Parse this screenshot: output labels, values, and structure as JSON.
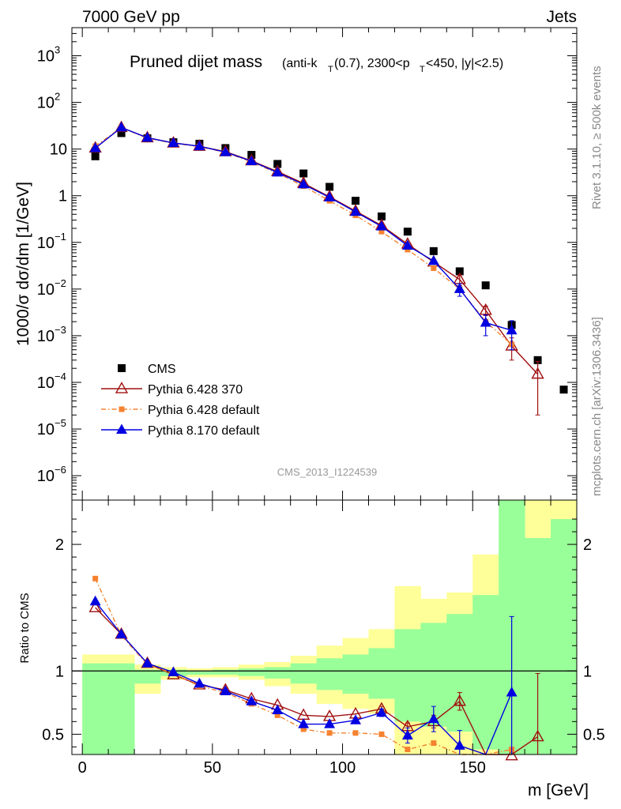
{
  "header": {
    "left": "7000 GeV pp",
    "right": "Jets"
  },
  "side": {
    "rivet": "Rivet 3.1.10, ≥ 500k events",
    "arxiv": "mcplots.cern.ch [arXiv:1306.3436]"
  },
  "chart_data": [
    {
      "type": "scatter",
      "panel": "main",
      "title": "Pruned dijet mass",
      "subtitle": "(anti-k_T(0.7), 2300<p_T<450, |y|<2.5)",
      "ylabel": "1000/σ dσ/dm [1/GeV]",
      "yscale": "log",
      "ylim": [
        3e-07,
        4000
      ],
      "xlim": [
        -4,
        190
      ],
      "watermark": "CMS_2013_I1224539",
      "legend_position": "bottom-left",
      "series": [
        {
          "name": "CMS",
          "color": "#000000",
          "marker": "square",
          "line": "none",
          "x": [
            5,
            15,
            25,
            35,
            45,
            55,
            65,
            75,
            85,
            95,
            105,
            115,
            125,
            135,
            145,
            155,
            165,
            175,
            185
          ],
          "y": [
            7,
            22,
            17,
            14,
            13,
            10.5,
            7.5,
            4.8,
            3.0,
            1.55,
            0.78,
            0.36,
            0.17,
            0.065,
            0.024,
            0.012,
            0.0017,
            0.0003,
            7e-05
          ]
        },
        {
          "name": "Pythia 6.428 370",
          "color": "#a01010",
          "marker": "open-triangle",
          "line": "solid",
          "x": [
            5,
            15,
            25,
            35,
            45,
            55,
            65,
            75,
            85,
            95,
            105,
            115,
            125,
            135,
            145,
            155,
            165,
            175
          ],
          "y": [
            10.5,
            29,
            17.5,
            13.5,
            11.5,
            8.8,
            5.6,
            3.3,
            1.85,
            0.95,
            0.47,
            0.23,
            0.092,
            0.038,
            0.016,
            0.0035,
            0.0006,
            0.00015
          ],
          "yerr": [
            0,
            0,
            0,
            0,
            0,
            0,
            0,
            0,
            0,
            0,
            0,
            0,
            0,
            0,
            0.004,
            0.0008,
            0.0003,
            0.00013
          ]
        },
        {
          "name": "Pythia 6.428 default",
          "color": "#f58230",
          "marker": "square",
          "line": "dashdot",
          "x": [
            5,
            15,
            25,
            35,
            45,
            55,
            65,
            75,
            85,
            95,
            105,
            115,
            125,
            135,
            145,
            155,
            165
          ],
          "y": [
            11.5,
            29,
            17,
            13.3,
            11.3,
            8.5,
            5.3,
            3.05,
            1.6,
            0.78,
            0.38,
            0.17,
            0.07,
            0.028,
            0.01,
            0.002,
            0.00065
          ]
        },
        {
          "name": "Pythia 8.170 default",
          "color": "#0000e0",
          "marker": "triangle",
          "line": "solid",
          "x": [
            5,
            15,
            25,
            35,
            45,
            55,
            65,
            75,
            85,
            95,
            105,
            115,
            125,
            135,
            145,
            155,
            165
          ],
          "y": [
            10.5,
            29,
            17.5,
            13.5,
            11.5,
            8.6,
            5.5,
            3.15,
            1.75,
            0.92,
            0.45,
            0.22,
            0.085,
            0.04,
            0.01,
            0.0019,
            0.0013
          ],
          "yerr": [
            0,
            0,
            0,
            0,
            0,
            0,
            0,
            0,
            0,
            0,
            0,
            0,
            0,
            0,
            0.003,
            0.0009,
            0.0008
          ]
        }
      ]
    },
    {
      "type": "line",
      "panel": "ratio",
      "xlabel": "m [GeV]",
      "ylabel": "Ratio to CMS",
      "xlim": [
        -4,
        190
      ],
      "ylim": [
        0.34,
        2.35
      ],
      "xticks": [
        0,
        50,
        100,
        150
      ],
      "yticks": [
        0.5,
        1,
        2
      ],
      "band_edges": [
        0,
        10,
        20,
        30,
        40,
        50,
        60,
        70,
        80,
        90,
        100,
        110,
        120,
        130,
        140,
        150,
        160,
        170,
        180,
        190
      ],
      "band_inner": [
        [
          0.34,
          1.06
        ],
        [
          0.34,
          1.06
        ],
        [
          0.9,
          1.01
        ],
        [
          0.96,
          1.01
        ],
        [
          0.97,
          1.0
        ],
        [
          0.97,
          1.01
        ],
        [
          0.96,
          1.02
        ],
        [
          0.94,
          1.03
        ],
        [
          0.9,
          1.06
        ],
        [
          0.85,
          1.1
        ],
        [
          0.82,
          1.13
        ],
        [
          0.78,
          1.18
        ],
        [
          0.6,
          1.33
        ],
        [
          0.56,
          1.38
        ],
        [
          0.52,
          1.45
        ],
        [
          0.38,
          1.6
        ],
        [
          0.34,
          2.35
        ],
        [
          0.34,
          2.05
        ],
        [
          0.34,
          2.2
        ]
      ],
      "band_outer": [
        [
          0.34,
          1.13
        ],
        [
          0.34,
          1.13
        ],
        [
          0.82,
          1.05
        ],
        [
          0.93,
          1.03
        ],
        [
          0.95,
          1.02
        ],
        [
          0.95,
          1.03
        ],
        [
          0.93,
          1.05
        ],
        [
          0.88,
          1.07
        ],
        [
          0.82,
          1.12
        ],
        [
          0.74,
          1.2
        ],
        [
          0.7,
          1.26
        ],
        [
          0.66,
          1.33
        ],
        [
          0.34,
          1.67
        ],
        [
          0.34,
          1.57
        ],
        [
          0.34,
          1.62
        ],
        [
          0.34,
          1.92
        ],
        [
          0.34,
          2.35
        ],
        [
          0.34,
          2.35
        ],
        [
          0.34,
          2.35
        ]
      ],
      "reference": 1,
      "series": [
        {
          "name": "Pythia 6.428 370",
          "color": "#a01010",
          "marker": "open-triangle",
          "line": "solid",
          "x": [
            5,
            15,
            25,
            35,
            45,
            55,
            65,
            75,
            85,
            95,
            105,
            115,
            125,
            135,
            145,
            155,
            165,
            175
          ],
          "y": [
            1.5,
            1.29,
            1.06,
            0.97,
            0.89,
            0.85,
            0.78,
            0.73,
            0.65,
            0.64,
            0.66,
            0.7,
            0.56,
            0.6,
            0.76,
            0.3,
            0.33,
            0.48
          ],
          "yerr": [
            0,
            0,
            0,
            0,
            0,
            0,
            0,
            0,
            0,
            0,
            0,
            0.02,
            0.03,
            0.05,
            0.07,
            0,
            0,
            0.5
          ]
        },
        {
          "name": "Pythia 6.428 default",
          "color": "#f58230",
          "marker": "square",
          "line": "dashdot",
          "x": [
            5,
            15,
            25,
            35,
            45,
            55,
            65,
            75,
            85,
            95,
            105,
            115,
            125,
            135,
            145,
            155,
            165
          ],
          "y": [
            1.73,
            1.28,
            1.05,
            0.98,
            0.88,
            0.83,
            0.74,
            0.65,
            0.54,
            0.51,
            0.51,
            0.5,
            0.38,
            0.43,
            0.2,
            0.15,
            0.38
          ]
        },
        {
          "name": "Pythia 8.170 default",
          "color": "#0000e0",
          "marker": "triangle",
          "line": "solid",
          "x": [
            5,
            15,
            25,
            35,
            45,
            55,
            65,
            75,
            85,
            95,
            105,
            115,
            125,
            135,
            145,
            155,
            165
          ],
          "y": [
            1.55,
            1.29,
            1.06,
            0.99,
            0.9,
            0.84,
            0.76,
            0.69,
            0.58,
            0.58,
            0.61,
            0.67,
            0.49,
            0.62,
            0.41,
            0.15,
            0.83
          ],
          "yerr": [
            0,
            0,
            0,
            0,
            0,
            0,
            0,
            0,
            0,
            0,
            0,
            0.03,
            0.06,
            0.1,
            0.12,
            0,
            0.6
          ]
        }
      ]
    }
  ]
}
